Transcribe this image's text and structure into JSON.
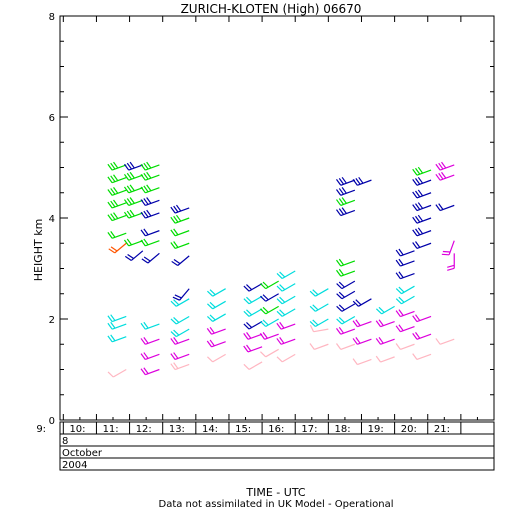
{
  "chart_data": {
    "type": "wind-barb-profile",
    "title": "ZURICH-KLOTEN (High) 06670",
    "xlabel": "TIME - UTC",
    "ylabel": "HEIGHT km",
    "footnote": "Data not assimilated in UK Model - Operational",
    "ylim": [
      0,
      8
    ],
    "xlim": [
      8.9,
      22.0
    ],
    "y_ticks": [
      "0",
      "2",
      "4",
      "6",
      "8"
    ],
    "x_ticks": [
      "9:",
      "10:",
      "11:",
      "12:",
      "13:",
      "14:",
      "15:",
      "16:",
      "17:",
      "18:",
      "19:",
      "20:",
      "21:"
    ],
    "date_rows": [
      "8",
      "October",
      "2004"
    ],
    "colors": {
      "green": "#00dd00",
      "blue": "#0000aa",
      "cyan": "#00dddd",
      "magenta": "#dd00dd",
      "pink": "#ffb6c1",
      "orange": "#ff5500"
    },
    "columns": [
      {
        "t": 10.9,
        "barbs": [
          {
            "h": 5.05,
            "c": "green",
            "dir": 250,
            "b": 3
          },
          {
            "h": 4.8,
            "c": "green",
            "dir": 250,
            "b": 3
          },
          {
            "h": 4.55,
            "c": "green",
            "dir": 250,
            "b": 3
          },
          {
            "h": 4.3,
            "c": "green",
            "dir": 250,
            "b": 3
          },
          {
            "h": 4.05,
            "c": "green",
            "dir": 250,
            "b": 3
          },
          {
            "h": 3.7,
            "c": "green",
            "dir": 250,
            "b": 2
          },
          {
            "h": 3.5,
            "c": "orange",
            "dir": 230,
            "b": 2
          },
          {
            "h": 2.05,
            "c": "cyan",
            "dir": 250,
            "b": 2
          },
          {
            "h": 1.9,
            "c": "cyan",
            "dir": 250,
            "b": 2
          },
          {
            "h": 1.65,
            "c": "cyan",
            "dir": 250,
            "b": 2
          },
          {
            "h": 1.0,
            "c": "pink",
            "dir": 240,
            "b": 1
          }
        ]
      },
      {
        "t": 11.4,
        "barbs": [
          {
            "h": 5.05,
            "c": "blue",
            "dir": 250,
            "b": 3
          },
          {
            "h": 4.85,
            "c": "green",
            "dir": 250,
            "b": 3
          },
          {
            "h": 4.6,
            "c": "green",
            "dir": 250,
            "b": 3
          },
          {
            "h": 4.35,
            "c": "green",
            "dir": 250,
            "b": 3
          },
          {
            "h": 4.1,
            "c": "green",
            "dir": 250,
            "b": 3
          },
          {
            "h": 3.55,
            "c": "green",
            "dir": 250,
            "b": 2
          },
          {
            "h": 3.35,
            "c": "blue",
            "dir": 230,
            "b": 2
          }
        ]
      },
      {
        "t": 11.9,
        "barbs": [
          {
            "h": 5.05,
            "c": "green",
            "dir": 250,
            "b": 3
          },
          {
            "h": 4.85,
            "c": "green",
            "dir": 250,
            "b": 3
          },
          {
            "h": 4.6,
            "c": "green",
            "dir": 250,
            "b": 3
          },
          {
            "h": 4.35,
            "c": "blue",
            "dir": 250,
            "b": 3
          },
          {
            "h": 4.1,
            "c": "blue",
            "dir": 250,
            "b": 3
          },
          {
            "h": 3.75,
            "c": "blue",
            "dir": 250,
            "b": 2
          },
          {
            "h": 3.55,
            "c": "green",
            "dir": 250,
            "b": 2
          },
          {
            "h": 3.3,
            "c": "blue",
            "dir": 230,
            "b": 2
          },
          {
            "h": 1.9,
            "c": "cyan",
            "dir": 250,
            "b": 2
          },
          {
            "h": 1.6,
            "c": "magenta",
            "dir": 250,
            "b": 2
          },
          {
            "h": 1.3,
            "c": "magenta",
            "dir": 250,
            "b": 2
          },
          {
            "h": 1.0,
            "c": "magenta",
            "dir": 250,
            "b": 2
          }
        ]
      },
      {
        "t": 12.8,
        "barbs": [
          {
            "h": 4.2,
            "c": "blue",
            "dir": 250,
            "b": 3
          },
          {
            "h": 4.0,
            "c": "green",
            "dir": 250,
            "b": 3
          },
          {
            "h": 3.75,
            "c": "green",
            "dir": 250,
            "b": 2
          },
          {
            "h": 3.5,
            "c": "green",
            "dir": 250,
            "b": 2
          },
          {
            "h": 3.25,
            "c": "blue",
            "dir": 230,
            "b": 2
          },
          {
            "h": 2.6,
            "c": "blue",
            "dir": 220,
            "b": 2
          },
          {
            "h": 2.4,
            "c": "cyan",
            "dir": 240,
            "b": 2
          },
          {
            "h": 2.05,
            "c": "cyan",
            "dir": 240,
            "b": 2
          },
          {
            "h": 1.8,
            "c": "cyan",
            "dir": 240,
            "b": 2
          },
          {
            "h": 1.6,
            "c": "magenta",
            "dir": 250,
            "b": 2
          },
          {
            "h": 1.3,
            "c": "magenta",
            "dir": 250,
            "b": 2
          },
          {
            "h": 1.1,
            "c": "pink",
            "dir": 250,
            "b": 2
          }
        ]
      },
      {
        "t": 13.9,
        "barbs": [
          {
            "h": 2.6,
            "c": "cyan",
            "dir": 240,
            "b": 2
          },
          {
            "h": 2.35,
            "c": "cyan",
            "dir": 240,
            "b": 2
          },
          {
            "h": 2.1,
            "c": "cyan",
            "dir": 240,
            "b": 2
          },
          {
            "h": 1.8,
            "c": "magenta",
            "dir": 250,
            "b": 2
          },
          {
            "h": 1.55,
            "c": "magenta",
            "dir": 250,
            "b": 2
          },
          {
            "h": 1.3,
            "c": "pink",
            "dir": 240,
            "b": 1
          }
        ]
      },
      {
        "t": 15.0,
        "barbs": [
          {
            "h": 2.7,
            "c": "blue",
            "dir": 240,
            "b": 2
          },
          {
            "h": 2.45,
            "c": "cyan",
            "dir": 240,
            "b": 2
          },
          {
            "h": 2.2,
            "c": "cyan",
            "dir": 240,
            "b": 2
          },
          {
            "h": 1.95,
            "c": "blue",
            "dir": 240,
            "b": 2
          },
          {
            "h": 1.7,
            "c": "magenta",
            "dir": 250,
            "b": 2
          },
          {
            "h": 1.45,
            "c": "magenta",
            "dir": 250,
            "b": 2
          },
          {
            "h": 1.15,
            "c": "pink",
            "dir": 240,
            "b": 1
          }
        ]
      },
      {
        "t": 15.5,
        "barbs": [
          {
            "h": 2.75,
            "c": "green",
            "dir": 240,
            "b": 2
          },
          {
            "h": 2.5,
            "c": "blue",
            "dir": 240,
            "b": 2
          },
          {
            "h": 2.25,
            "c": "green",
            "dir": 240,
            "b": 2
          },
          {
            "h": 2.0,
            "c": "cyan",
            "dir": 240,
            "b": 2
          },
          {
            "h": 1.7,
            "c": "magenta",
            "dir": 250,
            "b": 2
          },
          {
            "h": 1.4,
            "c": "pink",
            "dir": 240,
            "b": 1
          }
        ]
      },
      {
        "t": 16.0,
        "barbs": [
          {
            "h": 2.95,
            "c": "cyan",
            "dir": 240,
            "b": 2
          },
          {
            "h": 2.7,
            "c": "cyan",
            "dir": 240,
            "b": 2
          },
          {
            "h": 2.45,
            "c": "cyan",
            "dir": 240,
            "b": 2
          },
          {
            "h": 2.2,
            "c": "cyan",
            "dir": 240,
            "b": 2
          },
          {
            "h": 1.9,
            "c": "magenta",
            "dir": 250,
            "b": 2
          },
          {
            "h": 1.6,
            "c": "magenta",
            "dir": 250,
            "b": 2
          },
          {
            "h": 1.3,
            "c": "pink",
            "dir": 240,
            "b": 1
          }
        ]
      },
      {
        "t": 17.0,
        "barbs": [
          {
            "h": 2.6,
            "c": "cyan",
            "dir": 240,
            "b": 2
          },
          {
            "h": 2.3,
            "c": "cyan",
            "dir": 240,
            "b": 2
          },
          {
            "h": 2.0,
            "c": "cyan",
            "dir": 240,
            "b": 2
          },
          {
            "h": 1.8,
            "c": "pink",
            "dir": 260,
            "b": 1
          },
          {
            "h": 1.5,
            "c": "pink",
            "dir": 250,
            "b": 1
          }
        ]
      },
      {
        "t": 17.8,
        "barbs": [
          {
            "h": 4.75,
            "c": "blue",
            "dir": 250,
            "b": 3
          },
          {
            "h": 4.55,
            "c": "blue",
            "dir": 250,
            "b": 3
          },
          {
            "h": 4.35,
            "c": "green",
            "dir": 250,
            "b": 3
          },
          {
            "h": 4.15,
            "c": "blue",
            "dir": 250,
            "b": 3
          },
          {
            "h": 3.15,
            "c": "green",
            "dir": 250,
            "b": 2
          },
          {
            "h": 2.95,
            "c": "green",
            "dir": 250,
            "b": 2
          },
          {
            "h": 2.75,
            "c": "blue",
            "dir": 240,
            "b": 2
          },
          {
            "h": 2.55,
            "c": "blue",
            "dir": 240,
            "b": 2
          },
          {
            "h": 2.3,
            "c": "blue",
            "dir": 240,
            "b": 2
          },
          {
            "h": 2.05,
            "c": "cyan",
            "dir": 240,
            "b": 2
          },
          {
            "h": 1.8,
            "c": "magenta",
            "dir": 250,
            "b": 2
          },
          {
            "h": 1.5,
            "c": "pink",
            "dir": 250,
            "b": 1
          }
        ]
      },
      {
        "t": 18.3,
        "barbs": [
          {
            "h": 4.75,
            "c": "blue",
            "dir": 250,
            "b": 3
          },
          {
            "h": 2.4,
            "c": "blue",
            "dir": 240,
            "b": 2
          },
          {
            "h": 1.95,
            "c": "magenta",
            "dir": 250,
            "b": 2
          },
          {
            "h": 1.6,
            "c": "magenta",
            "dir": 250,
            "b": 2
          },
          {
            "h": 1.2,
            "c": "pink",
            "dir": 250,
            "b": 1
          }
        ]
      },
      {
        "t": 19.0,
        "barbs": [
          {
            "h": 2.25,
            "c": "cyan",
            "dir": 240,
            "b": 2
          },
          {
            "h": 1.95,
            "c": "magenta",
            "dir": 250,
            "b": 2
          },
          {
            "h": 1.6,
            "c": "magenta",
            "dir": 250,
            "b": 2
          },
          {
            "h": 1.25,
            "c": "pink",
            "dir": 250,
            "b": 1
          }
        ]
      },
      {
        "t": 19.6,
        "barbs": [
          {
            "h": 3.35,
            "c": "blue",
            "dir": 250,
            "b": 2
          },
          {
            "h": 3.15,
            "c": "blue",
            "dir": 250,
            "b": 2
          },
          {
            "h": 2.9,
            "c": "blue",
            "dir": 250,
            "b": 2
          },
          {
            "h": 2.65,
            "c": "cyan",
            "dir": 240,
            "b": 2
          },
          {
            "h": 2.45,
            "c": "cyan",
            "dir": 240,
            "b": 2
          },
          {
            "h": 2.15,
            "c": "magenta",
            "dir": 250,
            "b": 2
          },
          {
            "h": 1.85,
            "c": "magenta",
            "dir": 250,
            "b": 2
          },
          {
            "h": 1.5,
            "c": "pink",
            "dir": 250,
            "b": 1
          }
        ]
      },
      {
        "t": 20.1,
        "barbs": [
          {
            "h": 4.95,
            "c": "green",
            "dir": 250,
            "b": 3
          },
          {
            "h": 4.75,
            "c": "blue",
            "dir": 250,
            "b": 3
          },
          {
            "h": 4.5,
            "c": "blue",
            "dir": 250,
            "b": 3
          },
          {
            "h": 4.25,
            "c": "blue",
            "dir": 250,
            "b": 3
          },
          {
            "h": 4.0,
            "c": "blue",
            "dir": 250,
            "b": 3
          },
          {
            "h": 3.75,
            "c": "blue",
            "dir": 250,
            "b": 3
          },
          {
            "h": 3.5,
            "c": "blue",
            "dir": 250,
            "b": 2
          },
          {
            "h": 2.05,
            "c": "magenta",
            "dir": 250,
            "b": 2
          },
          {
            "h": 1.7,
            "c": "magenta",
            "dir": 250,
            "b": 2
          },
          {
            "h": 1.3,
            "c": "pink",
            "dir": 250,
            "b": 1
          }
        ]
      },
      {
        "t": 20.8,
        "barbs": [
          {
            "h": 5.05,
            "c": "magenta",
            "dir": 250,
            "b": 3
          },
          {
            "h": 4.85,
            "c": "magenta",
            "dir": 250,
            "b": 3
          },
          {
            "h": 4.25,
            "c": "blue",
            "dir": 250,
            "b": 2
          },
          {
            "h": 3.55,
            "c": "magenta",
            "dir": 200,
            "b": 2
          },
          {
            "h": 3.3,
            "c": "magenta",
            "dir": 180,
            "b": 2
          },
          {
            "h": 1.6,
            "c": "pink",
            "dir": 250,
            "b": 1
          }
        ]
      }
    ]
  }
}
